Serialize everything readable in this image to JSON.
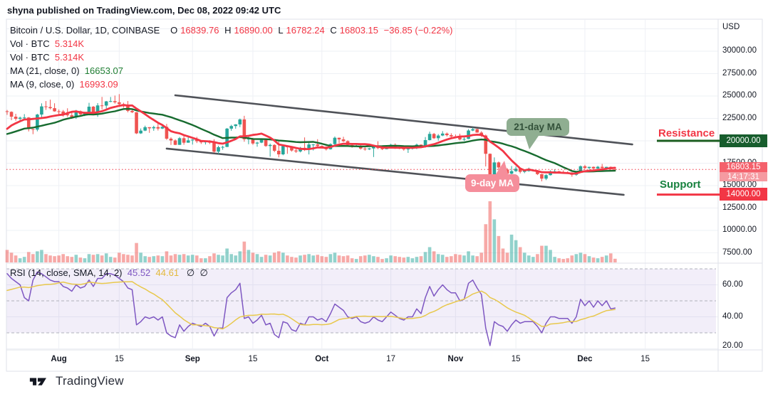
{
  "header": {
    "published_line": "shyna published on TradingView.com, Dec 08, 2022 09:42 UTC"
  },
  "legend": {
    "symbol": "Bitcoin / U.S. Dollar, 1D, COINBASE",
    "ohlc": {
      "o_label": "O",
      "o": "16839.76",
      "h_label": "H",
      "h": "16890.00",
      "l_label": "L",
      "l": "16782.24",
      "c_label": "C",
      "c": "16803.15",
      "change": "−36.85 (−0.22%)"
    },
    "vol_rows": [
      {
        "label": "Vol · BTC",
        "value": "5.314K"
      },
      {
        "label": "Vol · BTC",
        "value": "5.314K"
      }
    ],
    "ma_rows": [
      {
        "label": "MA (21, close, 0)",
        "value": "16653.07"
      },
      {
        "label": "MA (9, close, 0)",
        "value": "16993.09"
      }
    ]
  },
  "rsi_legend": {
    "title": "RSI (14, close, SMA, 14, 2)",
    "value": "45.52",
    "sma_value": "44.61",
    "hidden_1": "∅",
    "hidden_2": "∅"
  },
  "annotations": {
    "resistance_label": "Resistance",
    "support_label": "Support",
    "resistance_badge": "20000.00",
    "support_badge": "14000.00",
    "price_badge": "16803.15",
    "countdown_badge": "14:17:31",
    "ma21_callout": "21-day MA",
    "ma9_callout": "9-day MA"
  },
  "price_axis": {
    "title": "USD",
    "ticks": [
      30000,
      27500,
      25000,
      22500,
      20000,
      17500,
      15000,
      12500,
      10000,
      7500
    ]
  },
  "rsi_axis": {
    "ticks": [
      60,
      40,
      20
    ]
  },
  "time_axis": {
    "ticks": [
      {
        "label": "Aug",
        "day": 12,
        "bold": true
      },
      {
        "label": "15",
        "day": 26,
        "bold": false
      },
      {
        "label": "Sep",
        "day": 43,
        "bold": true
      },
      {
        "label": "15",
        "day": 57,
        "bold": false
      },
      {
        "label": "Oct",
        "day": 73,
        "bold": true
      },
      {
        "label": "17",
        "day": 89,
        "bold": false
      },
      {
        "label": "Nov",
        "day": 104,
        "bold": true
      },
      {
        "label": "15",
        "day": 118,
        "bold": false
      },
      {
        "label": "Dec",
        "day": 134,
        "bold": true
      },
      {
        "label": "15",
        "day": 148,
        "bold": false
      }
    ]
  },
  "logo": {
    "text": "TradingView"
  },
  "colors": {
    "up": "#26a69a",
    "down": "#ef5350",
    "ma21": "#176b2f",
    "ma9": "#f23645",
    "rsi": "#7e57c2",
    "rsi_sma": "#e8c84c",
    "channel": "#4f5258",
    "resistance": "#1b5e20",
    "support": "#f23645",
    "grid": "#eef0f5",
    "frame": "#dfe2ea",
    "band_fill": "rgba(126,87,194,0.10)",
    "dash": "#b0b3bc",
    "last_price": "#f23645"
  },
  "chart_data": {
    "type": "candlestick",
    "title": "Bitcoin / U.S. Dollar, 1D, COINBASE",
    "interval": "1D",
    "start_date": "2022-07-20",
    "price_axis_range": [
      7000,
      33000
    ],
    "grid": true,
    "levels": {
      "resistance": 20000,
      "support": 14000,
      "last_price": 16803.15,
      "countdown": "14:17:31"
    },
    "ma": [
      {
        "name": "MA21",
        "period": 21,
        "last": 16653.07
      },
      {
        "name": "MA9",
        "period": 9,
        "last": 16993.09
      }
    ],
    "channel_lines": {
      "upper": {
        "from_day": 39,
        "from_price": 25080,
        "to_day": 145,
        "to_price": 19600
      },
      "lower": {
        "from_day": 37,
        "from_price": 19130,
        "to_day": 143,
        "to_price": 13970
      }
    },
    "pre_closes": [
      19940,
      19280,
      19240,
      19300,
      20230,
      20190,
      20550,
      21640,
      21230,
      21590,
      20860,
      19970,
      19330,
      20230,
      20580,
      20830,
      21190,
      20790,
      22470,
      23400
    ],
    "candles": [
      [
        23300,
        23440,
        22900,
        23230
      ],
      [
        23230,
        23290,
        22300,
        22690
      ],
      [
        22690,
        23010,
        22250,
        22460
      ],
      [
        22460,
        22700,
        22130,
        22580
      ],
      [
        22580,
        22980,
        22300,
        22600
      ],
      [
        22600,
        22650,
        21050,
        21310
      ],
      [
        21310,
        21340,
        20740,
        21250
      ],
      [
        21250,
        23010,
        21060,
        22930
      ],
      [
        22930,
        24180,
        22590,
        23840
      ],
      [
        23840,
        24440,
        23450,
        23770
      ],
      [
        23770,
        24590,
        23510,
        23640
      ],
      [
        23640,
        24190,
        23250,
        23290
      ],
      [
        23290,
        23500,
        22860,
        23270
      ],
      [
        23270,
        23440,
        22700,
        22980
      ],
      [
        22980,
        23630,
        22680,
        22850
      ],
      [
        22850,
        23200,
        22450,
        22600
      ],
      [
        22600,
        23450,
        22440,
        23310
      ],
      [
        23310,
        23390,
        22830,
        22950
      ],
      [
        22950,
        23250,
        22750,
        23175
      ],
      [
        23175,
        24240,
        23160,
        23810
      ],
      [
        23810,
        23890,
        22850,
        23150
      ],
      [
        23150,
        24210,
        22670,
        23950
      ],
      [
        23950,
        24900,
        23500,
        23930
      ],
      [
        23930,
        24450,
        23610,
        24400
      ],
      [
        24400,
        24890,
        24310,
        24430
      ],
      [
        24430,
        25050,
        24150,
        24300
      ],
      [
        24300,
        25210,
        23780,
        24100
      ],
      [
        24100,
        24250,
        23690,
        23850
      ],
      [
        23850,
        24440,
        23180,
        23340
      ],
      [
        23340,
        23600,
        23100,
        23190
      ],
      [
        23190,
        23210,
        20760,
        20830
      ],
      [
        20830,
        21380,
        20770,
        21140
      ],
      [
        21140,
        21690,
        21080,
        21520
      ],
      [
        21520,
        21530,
        20890,
        21400
      ],
      [
        21400,
        21680,
        21120,
        21530
      ],
      [
        21530,
        21900,
        21150,
        21370
      ],
      [
        21370,
        21820,
        21310,
        21560
      ],
      [
        21560,
        21880,
        20110,
        20240
      ],
      [
        20240,
        20390,
        19540,
        20040
      ],
      [
        20040,
        20170,
        19520,
        19550
      ],
      [
        19550,
        20430,
        19550,
        20290
      ],
      [
        20290,
        20580,
        19560,
        19790
      ],
      [
        19790,
        20480,
        19790,
        20050
      ],
      [
        20050,
        20200,
        19580,
        20130
      ],
      [
        20130,
        20440,
        19750,
        19950
      ],
      [
        19950,
        20050,
        19650,
        19830
      ],
      [
        19830,
        20030,
        19590,
        19990
      ],
      [
        19990,
        20060,
        19640,
        19790
      ],
      [
        19790,
        20180,
        18650,
        18790
      ],
      [
        18790,
        19450,
        18530,
        19290
      ],
      [
        19290,
        19450,
        19000,
        19320
      ],
      [
        19320,
        21430,
        19300,
        21360
      ],
      [
        21360,
        21790,
        21120,
        21650
      ],
      [
        21650,
        21860,
        21350,
        21830
      ],
      [
        21830,
        22480,
        21530,
        22390
      ],
      [
        22390,
        22790,
        19900,
        20170
      ],
      [
        20170,
        20550,
        19620,
        20230
      ],
      [
        20230,
        20330,
        19550,
        19700
      ],
      [
        19700,
        19890,
        19340,
        19800
      ],
      [
        19800,
        20190,
        19740,
        20110
      ],
      [
        20110,
        20120,
        19330,
        19420
      ],
      [
        19420,
        19690,
        18230,
        19540
      ],
      [
        19540,
        19630,
        18740,
        18890
      ],
      [
        18890,
        19960,
        18150,
        18490
      ],
      [
        18490,
        19500,
        18390,
        19410
      ],
      [
        19410,
        19500,
        18550,
        19290
      ],
      [
        19290,
        19320,
        18800,
        18920
      ],
      [
        18920,
        19180,
        18650,
        18810
      ],
      [
        18810,
        19320,
        18710,
        19220
      ],
      [
        19220,
        20380,
        18870,
        19080
      ],
      [
        19080,
        19790,
        18480,
        19590
      ],
      [
        19590,
        19650,
        18920,
        19590
      ],
      [
        19590,
        20180,
        19160,
        19430
      ],
      [
        19430,
        19480,
        19160,
        19310
      ],
      [
        19310,
        19400,
        18920,
        19060
      ],
      [
        19060,
        19720,
        19020,
        19630
      ],
      [
        19630,
        20480,
        19500,
        20340
      ],
      [
        20340,
        20360,
        19750,
        20160
      ],
      [
        20160,
        20450,
        19870,
        19960
      ],
      [
        19960,
        20060,
        19320,
        19530
      ],
      [
        19530,
        19630,
        19230,
        19420
      ],
      [
        19420,
        19560,
        19320,
        19440
      ],
      [
        19440,
        19520,
        19020,
        19130
      ],
      [
        19130,
        19270,
        18900,
        19050
      ],
      [
        19050,
        19230,
        18970,
        19150
      ],
      [
        19150,
        19510,
        18190,
        19380
      ],
      [
        19380,
        19950,
        19070,
        19180
      ],
      [
        19180,
        19230,
        18970,
        19070
      ],
      [
        19070,
        19420,
        19060,
        19260
      ],
      [
        19260,
        19670,
        19170,
        19550
      ],
      [
        19550,
        19710,
        19100,
        19330
      ],
      [
        19330,
        19350,
        19070,
        19120
      ],
      [
        19120,
        19350,
        18900,
        19040
      ],
      [
        19040,
        19250,
        18650,
        19170
      ],
      [
        19170,
        19250,
        19030,
        19200
      ],
      [
        19200,
        19690,
        19070,
        19570
      ],
      [
        19570,
        19600,
        19190,
        19330
      ],
      [
        19330,
        20420,
        19240,
        20080
      ],
      [
        20080,
        21020,
        20050,
        20770
      ],
      [
        20770,
        20880,
        20200,
        20290
      ],
      [
        20290,
        20750,
        20020,
        20590
      ],
      [
        20590,
        21080,
        20520,
        20810
      ],
      [
        20810,
        20930,
        20480,
        20630
      ],
      [
        20630,
        20840,
        20250,
        20490
      ],
      [
        20490,
        20700,
        20330,
        20480
      ],
      [
        20480,
        20800,
        20060,
        20150
      ],
      [
        20150,
        20380,
        19990,
        20210
      ],
      [
        20210,
        21300,
        20180,
        21150
      ],
      [
        21150,
        21480,
        21080,
        21300
      ],
      [
        21300,
        21360,
        20900,
        20920
      ],
      [
        20920,
        21070,
        20430,
        20590
      ],
      [
        20590,
        20700,
        17140,
        18550
      ],
      [
        18550,
        18590,
        15590,
        15880
      ],
      [
        15880,
        18150,
        15780,
        17590
      ],
      [
        17590,
        17690,
        16380,
        17030
      ],
      [
        17030,
        17100,
        16630,
        16800
      ],
      [
        16800,
        16960,
        16230,
        16330
      ],
      [
        16330,
        17190,
        15820,
        16620
      ],
      [
        16620,
        17130,
        16530,
        16890
      ],
      [
        16890,
        16970,
        16360,
        16540
      ],
      [
        16540,
        16750,
        16390,
        16690
      ],
      [
        16690,
        17010,
        16560,
        16700
      ],
      [
        16700,
        16820,
        16580,
        16700
      ],
      [
        16700,
        16750,
        16180,
        16280
      ],
      [
        16280,
        16310,
        15480,
        15780
      ],
      [
        15780,
        16270,
        15620,
        16170
      ],
      [
        16170,
        16700,
        16130,
        16600
      ],
      [
        16600,
        16810,
        16390,
        16600
      ],
      [
        16600,
        16650,
        16340,
        16520
      ],
      [
        16520,
        16700,
        16380,
        16460
      ],
      [
        16460,
        16600,
        16340,
        16440
      ],
      [
        16440,
        16490,
        15990,
        16210
      ],
      [
        16210,
        16550,
        16100,
        16440
      ],
      [
        16440,
        17250,
        16430,
        17160
      ],
      [
        17160,
        17320,
        16790,
        16970
      ],
      [
        16970,
        17110,
        16790,
        17090
      ],
      [
        17090,
        17140,
        16860,
        16910
      ],
      [
        16910,
        17200,
        16880,
        17100
      ],
      [
        17100,
        17420,
        16870,
        16970
      ],
      [
        16970,
        17110,
        16910,
        17090
      ],
      [
        17090,
        17140,
        16680,
        16840
      ],
      [
        16840,
        16890,
        16782,
        16803.15
      ]
    ],
    "volumes": [
      18,
      14,
      10,
      6,
      8,
      15,
      12,
      16,
      18,
      12,
      10,
      9,
      10,
      12,
      9,
      8,
      11,
      7,
      6,
      12,
      11,
      12,
      10,
      13,
      8,
      7,
      14,
      12,
      11,
      10,
      28,
      14,
      9,
      8,
      9,
      10,
      9,
      16,
      10,
      12,
      11,
      12,
      10,
      11,
      10,
      6,
      6,
      9,
      13,
      11,
      10,
      20,
      12,
      10,
      16,
      30,
      18,
      14,
      12,
      8,
      11,
      10,
      14,
      16,
      14,
      10,
      8,
      7,
      10,
      11,
      12,
      10,
      11,
      9,
      8,
      12,
      14,
      10,
      9,
      10,
      6,
      5,
      9,
      10,
      11,
      9,
      8,
      5,
      6,
      10,
      9,
      8,
      7,
      8,
      6,
      8,
      9,
      15,
      22,
      16,
      12,
      11,
      8,
      9,
      12,
      11,
      10,
      16,
      10,
      9,
      14,
      55,
      88,
      62,
      38,
      20,
      14,
      40,
      32,
      22,
      14,
      10,
      8,
      12,
      24,
      24,
      18,
      8,
      6,
      5,
      6,
      10,
      12,
      14,
      12,
      9,
      7,
      6,
      8,
      10,
      13,
      5.3
    ],
    "rsi": {
      "params": "14, close, SMA, 14, 2",
      "last": 45.52,
      "sma_last": 44.61,
      "band": [
        30,
        70
      ],
      "ticks": [
        60,
        40,
        20
      ],
      "pre": [
        55,
        52,
        50,
        51,
        55,
        56,
        58,
        62,
        60,
        61,
        58,
        54,
        52
      ],
      "values": [
        67,
        64,
        62,
        60,
        52,
        50,
        63,
        68,
        67,
        65,
        63,
        62,
        62,
        59,
        58,
        56,
        60,
        58,
        59,
        63,
        59,
        64,
        64,
        67,
        67,
        66,
        64,
        62,
        58,
        57,
        35,
        37,
        40,
        39,
        40,
        38,
        40,
        30,
        28,
        27,
        35,
        31,
        34,
        36,
        35,
        34,
        36,
        34,
        28,
        33,
        33,
        52,
        55,
        57,
        61,
        39,
        40,
        36,
        38,
        41,
        35,
        36,
        29,
        27,
        37,
        36,
        32,
        31,
        36,
        35,
        40,
        40,
        38,
        39,
        37,
        42,
        48,
        46,
        44,
        40,
        39,
        40,
        37,
        36,
        37,
        40,
        38,
        37,
        40,
        43,
        41,
        39,
        38,
        40,
        40,
        45,
        42,
        52,
        59,
        53,
        57,
        60,
        57,
        55,
        55,
        50,
        51,
        61,
        63,
        58,
        54,
        33,
        22,
        37,
        35,
        34,
        31,
        35,
        38,
        36,
        37,
        37,
        37,
        34,
        30,
        36,
        40,
        40,
        39,
        39,
        39,
        36,
        40,
        51,
        47,
        50,
        46,
        50,
        47,
        50,
        45,
        45.5
      ]
    }
  }
}
